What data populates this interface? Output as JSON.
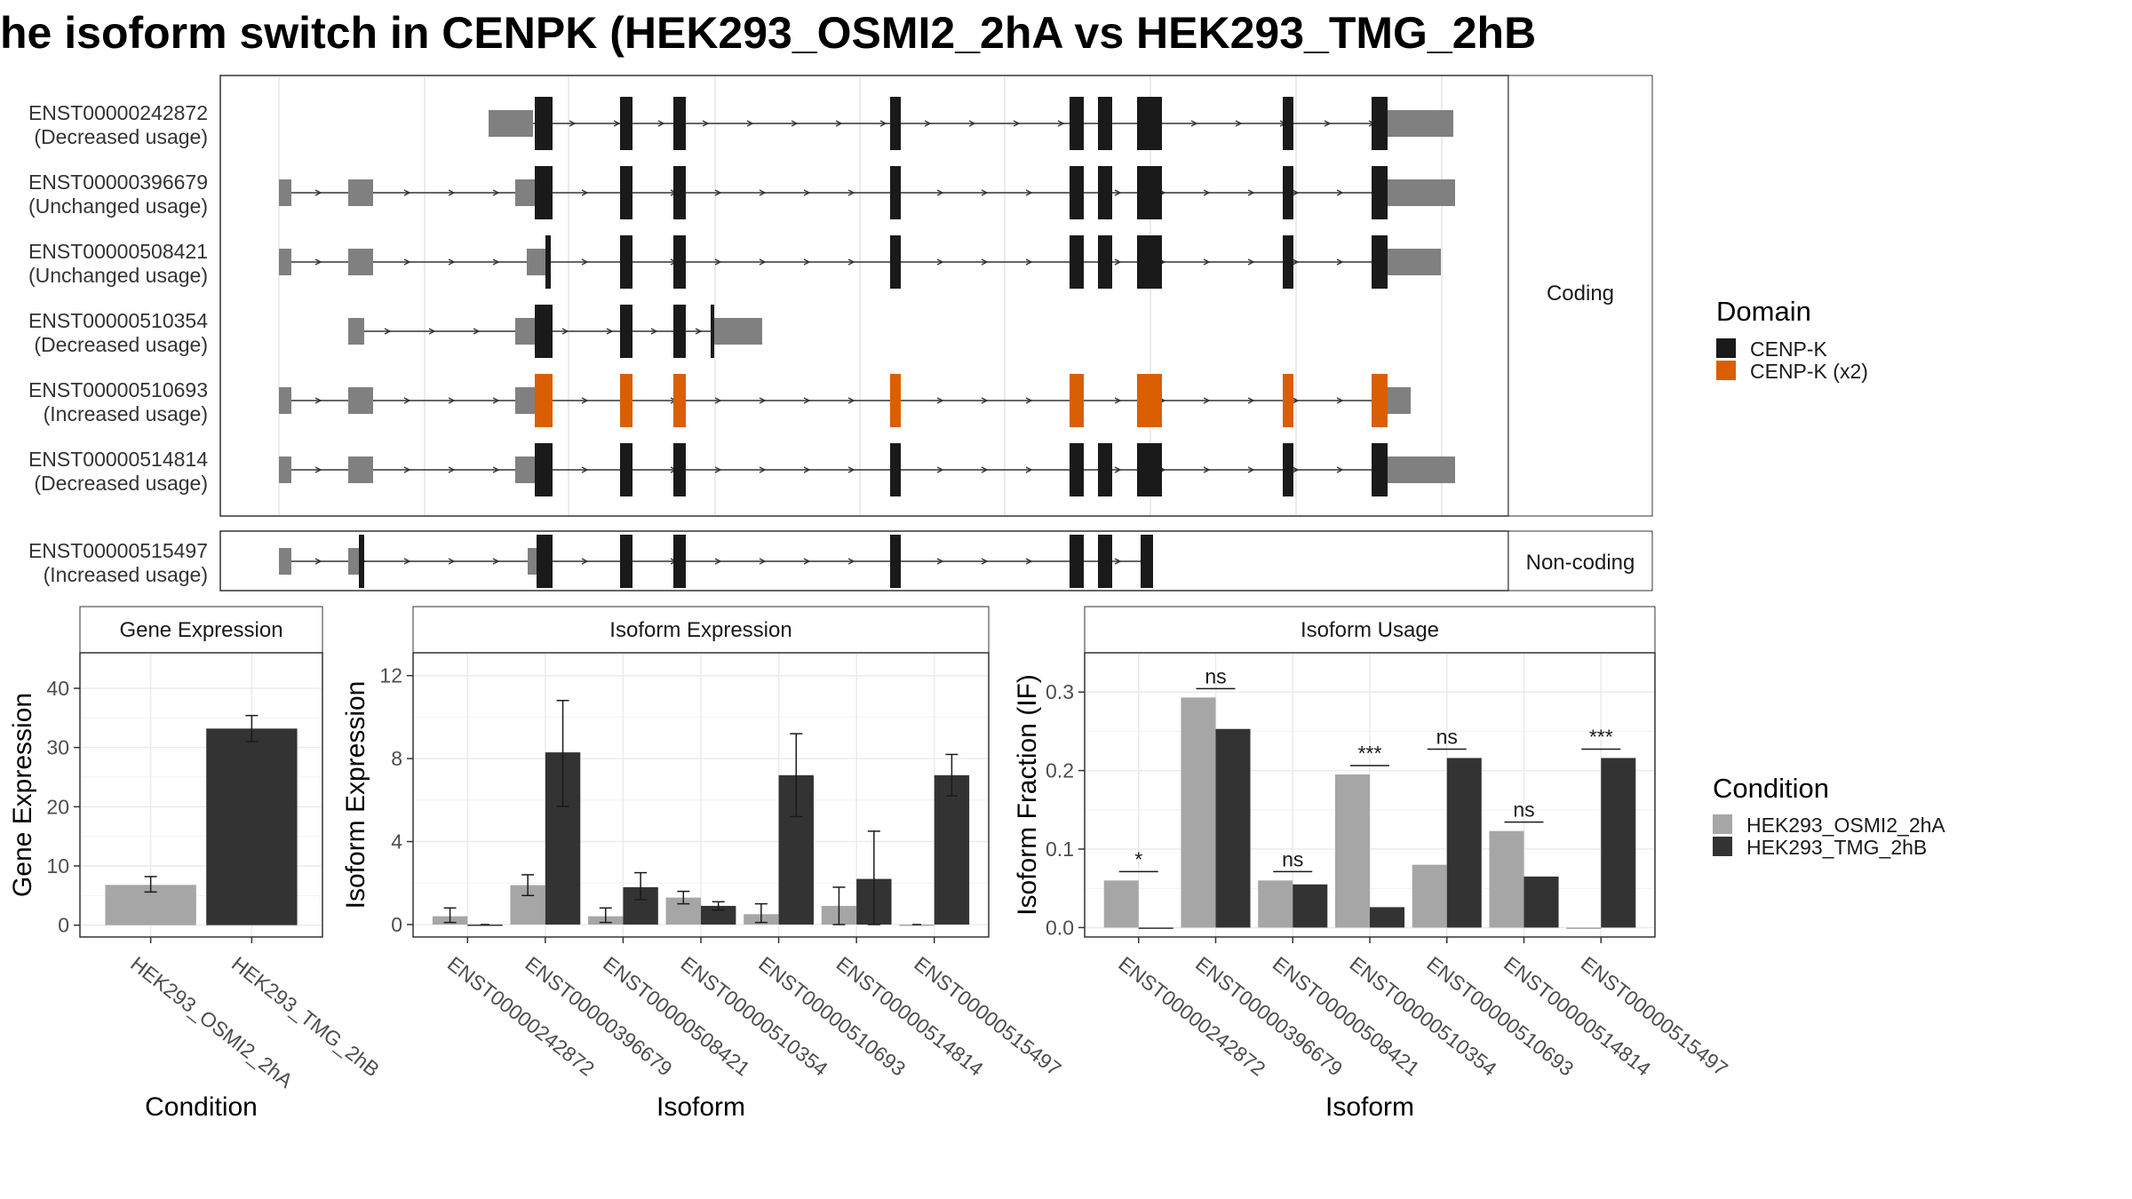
{
  "title": "he isoform switch in CENPK (HEK293_OSMI2_2hA vs HEK293_TMG_2hB",
  "colors": {
    "utr": "#808080",
    "cds": "#1a1a1a",
    "domain_x2": "#d95f02",
    "cond_a": "#a6a6a6",
    "cond_b": "#333333",
    "grid": "#ebebeb",
    "strip_bg": "#ffffff"
  },
  "structure": {
    "strip_coding": "Coding",
    "strip_noncoding": "Non-coding",
    "coding": [
      {
        "id": "ENST00000242872",
        "usage": "(Decreased usage)",
        "start_exon": 3,
        "end_exon": 11,
        "utr5": [
          3
        ],
        "utr3": [
          11
        ],
        "domain": "CENP-K"
      },
      {
        "id": "ENST00000396679",
        "usage": "(Unchanged usage)",
        "start_exon": 0,
        "end_exon": 11,
        "utr5": [
          0,
          1,
          2
        ],
        "utr3": [
          11
        ],
        "domain": "CENP-K"
      },
      {
        "id": "ENST00000508421",
        "usage": "(Unchanged usage)",
        "start_exon": 0,
        "end_exon": 11,
        "utr5": [
          0,
          1,
          2
        ],
        "utr3": [
          11
        ],
        "domain": "CENP-K"
      },
      {
        "id": "ENST00000510354",
        "usage": "(Decreased usage)",
        "start_exon": 1,
        "end_exon": 6,
        "utr5": [
          1,
          2
        ],
        "utr3": [
          6
        ],
        "domain": "CENP-K"
      },
      {
        "id": "ENST00000510693",
        "usage": "(Increased usage)",
        "start_exon": 0,
        "end_exon": 11,
        "utr5": [
          0,
          1,
          2
        ],
        "utr3": [
          11
        ],
        "domain": "CENP-K (x2)"
      },
      {
        "id": "ENST00000514814",
        "usage": "(Decreased usage)",
        "start_exon": 0,
        "end_exon": 11,
        "utr5": [
          0,
          1,
          2
        ],
        "utr3": [
          11
        ],
        "domain": "CENP-K"
      }
    ],
    "noncoding": [
      {
        "id": "ENST00000515497",
        "usage": "(Increased usage)"
      }
    ]
  },
  "legend_domain": {
    "title": "Domain",
    "items": [
      {
        "label": "CENP-K",
        "color": "#1a1a1a"
      },
      {
        "label": "CENP-K (x2)",
        "color": "#d95f02"
      }
    ]
  },
  "legend_condition": {
    "title": "Condition",
    "items": [
      {
        "label": "HEK293_OSMI2_2hA",
        "color": "#a6a6a6"
      },
      {
        "label": "HEK293_TMG_2hB",
        "color": "#333333"
      }
    ]
  },
  "chart_data": [
    {
      "type": "bar",
      "title": "Gene Expression",
      "xlabel": "Condition",
      "ylabel": "Gene Expression",
      "categories": [
        "HEK293_OSMI2_2hA",
        "HEK293_TMG_2hB"
      ],
      "values": [
        6.8,
        33.2
      ],
      "error_low": [
        5.6,
        31.0
      ],
      "error_high": [
        8.2,
        35.4
      ],
      "ylim": [
        -2,
        46
      ],
      "yticks": [
        0,
        10,
        20,
        30,
        40
      ]
    },
    {
      "type": "bar",
      "title": "Isoform Expression",
      "xlabel": "Isoform",
      "ylabel": "Isoform Expression",
      "categories": [
        "ENST00000242872",
        "ENST00000396679",
        "ENST00000508421",
        "ENST00000510354",
        "ENST00000510693",
        "ENST00000514814",
        "ENST00000515497"
      ],
      "series": [
        {
          "values": [
            0.4,
            1.9,
            0.4,
            1.3,
            0.5,
            0.9,
            0.0
          ],
          "err_low": [
            0.1,
            1.4,
            0.1,
            1.0,
            0.1,
            0.0,
            0.0
          ],
          "err_high": [
            0.8,
            2.4,
            0.8,
            1.6,
            1.0,
            1.8,
            0.0
          ]
        },
        {
          "values": [
            0.0,
            8.3,
            1.8,
            0.9,
            7.2,
            2.2,
            7.2
          ],
          "err_low": [
            0.0,
            5.7,
            1.2,
            0.7,
            5.2,
            0.0,
            6.2
          ],
          "err_high": [
            0.0,
            10.8,
            2.5,
            1.1,
            9.2,
            4.5,
            8.2
          ]
        }
      ],
      "ylim": [
        -0.6,
        13.1
      ],
      "yticks": [
        0,
        4,
        8,
        12
      ]
    },
    {
      "type": "bar",
      "title": "Isoform Usage",
      "xlabel": "Isoform",
      "ylabel": "Isoform Fraction (IF)",
      "categories": [
        "ENST00000242872",
        "ENST00000396679",
        "ENST00000508421",
        "ENST00000510354",
        "ENST00000510693",
        "ENST00000514814",
        "ENST00000515497"
      ],
      "series": [
        {
          "values": [
            0.06,
            0.293,
            0.06,
            0.195,
            0.08,
            0.123,
            0.0
          ]
        },
        {
          "values": [
            0.0,
            0.253,
            0.055,
            0.026,
            0.216,
            0.065,
            0.216
          ]
        }
      ],
      "significance": [
        "*",
        "ns",
        "ns",
        "***",
        "ns",
        "ns",
        "***"
      ],
      "ylim": [
        -0.012,
        0.35
      ],
      "yticks": [
        0.0,
        0.1,
        0.2,
        0.3
      ],
      "ytick_labels": [
        "0.0",
        "0.1",
        "0.2",
        "0.3"
      ]
    }
  ]
}
